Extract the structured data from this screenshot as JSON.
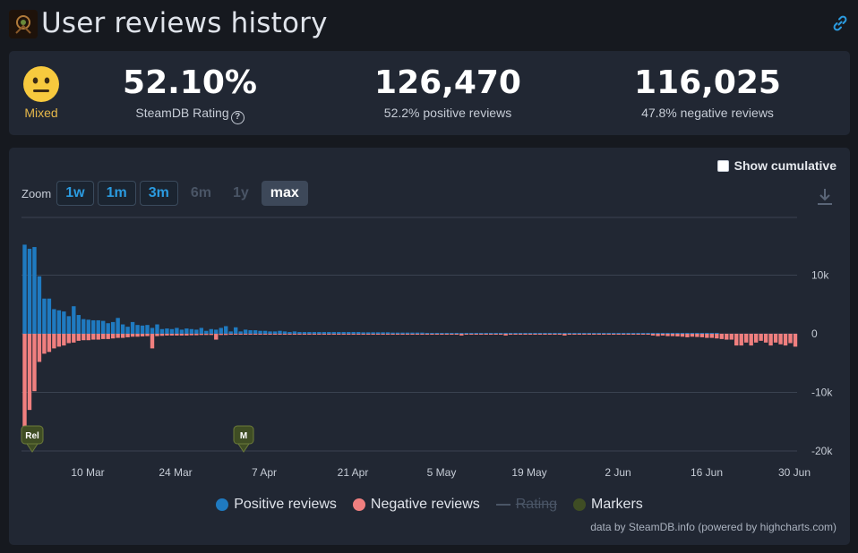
{
  "header": {
    "title": "User reviews history"
  },
  "summary": {
    "mood_label": "Mixed",
    "rating_value": "52.10%",
    "rating_label": "SteamDB Rating",
    "positive_count": "126,470",
    "positive_label": "52.2% positive reviews",
    "negative_count": "116,025",
    "negative_label": "47.8% negative reviews"
  },
  "controls": {
    "cumulative_label": "Show cumulative",
    "zoom_label": "Zoom",
    "zoom_options": [
      "1w",
      "1m",
      "3m",
      "6m",
      "1y",
      "max"
    ]
  },
  "legend": {
    "positive": "Positive reviews",
    "negative": "Negative reviews",
    "rating": "Rating",
    "markers": "Markers"
  },
  "credits": "data by SteamDB.info (powered by highcharts.com)",
  "colors": {
    "positive": "#1f7ac0",
    "negative": "#f07f7f",
    "markers": "#3f4d24",
    "accent": "#2b9be0",
    "mixed": "#e6b84a"
  },
  "chart_data": {
    "type": "bar",
    "y_ticks": [
      "10k",
      "0",
      "-10k",
      "-20k"
    ],
    "ylim": [
      -20000,
      20000
    ],
    "x_ticks": [
      "10 Mar",
      "24 Mar",
      "7 Apr",
      "21 Apr",
      "5 May",
      "19 May",
      "2 Jun",
      "16 Jun",
      "30 Jun"
    ],
    "markers": [
      "Rel",
      "M"
    ],
    "series": [
      {
        "name": "Positive reviews",
        "values": [
          15200,
          14500,
          14800,
          9800,
          6000,
          6000,
          4200,
          4000,
          3800,
          3000,
          4700,
          3200,
          2500,
          2400,
          2300,
          2300,
          2200,
          1800,
          2000,
          2700,
          1600,
          1200,
          2000,
          1500,
          1400,
          1500,
          1000,
          1600,
          800,
          900,
          800,
          1000,
          700,
          900,
          800,
          700,
          1000,
          500,
          800,
          700,
          1000,
          1300,
          400,
          1100,
          400,
          700,
          600,
          600,
          500,
          500,
          400,
          400,
          500,
          400,
          300,
          400,
          300,
          300,
          300,
          300,
          300,
          300,
          300,
          300,
          300,
          300,
          300,
          300,
          300,
          250,
          250,
          250,
          250,
          250,
          250,
          200,
          200,
          200,
          200,
          200,
          200,
          200,
          150,
          150,
          150,
          150,
          150,
          150,
          150,
          150,
          150,
          150,
          150,
          150,
          150,
          150,
          100,
          100,
          100,
          100,
          100,
          100,
          100,
          100,
          100,
          100,
          100,
          100,
          100,
          100,
          100,
          100,
          100,
          100,
          100,
          100,
          100,
          100,
          100,
          100,
          100,
          100,
          100,
          100,
          100,
          100,
          100,
          100,
          100,
          100,
          100,
          100,
          100,
          100,
          100,
          100,
          100,
          100,
          100,
          100,
          100,
          100
        ]
      },
      {
        "name": "Negative reviews",
        "values": [
          -17500,
          -13000,
          -9800,
          -4800,
          -3400,
          -3100,
          -2500,
          -2200,
          -2000,
          -1600,
          -1500,
          -1200,
          -1100,
          -1100,
          -1000,
          -1000,
          -900,
          -900,
          -800,
          -700,
          -700,
          -600,
          -500,
          -500,
          -450,
          -400,
          -2500,
          -400,
          -350,
          -300,
          -300,
          -300,
          -300,
          -300,
          -250,
          -250,
          -200,
          -200,
          -200,
          -1000,
          -200,
          -200,
          -150,
          -150,
          -150,
          -150,
          -150,
          -150,
          -150,
          -150,
          -150,
          -150,
          -150,
          -150,
          -150,
          -150,
          -150,
          -150,
          -150,
          -150,
          -150,
          -150,
          -150,
          -150,
          -150,
          -150,
          -150,
          -150,
          -150,
          -150,
          -150,
          -150,
          -150,
          -150,
          -150,
          -150,
          -150,
          -150,
          -150,
          -150,
          -150,
          -150,
          -150,
          -150,
          -150,
          -150,
          -150,
          -150,
          -150,
          -300,
          -150,
          -150,
          -150,
          -150,
          -150,
          -150,
          -150,
          -150,
          -300,
          -150,
          -150,
          -150,
          -150,
          -150,
          -150,
          -150,
          -150,
          -150,
          -150,
          -150,
          -300,
          -150,
          -150,
          -150,
          -150,
          -150,
          -150,
          -150,
          -150,
          -150,
          -150,
          -150,
          -150,
          -150,
          -150,
          -150,
          -150,
          -150,
          -300,
          -400,
          -300,
          -400,
          -400,
          -450,
          -500,
          -600,
          -500,
          -550,
          -600,
          -700,
          -700,
          -800,
          -900,
          -1000,
          -1000,
          -2000,
          -2000,
          -1500,
          -2000,
          -1500,
          -1200,
          -1500,
          -2000,
          -1500,
          -1800,
          -2000,
          -1600,
          -2200
        ]
      }
    ]
  }
}
